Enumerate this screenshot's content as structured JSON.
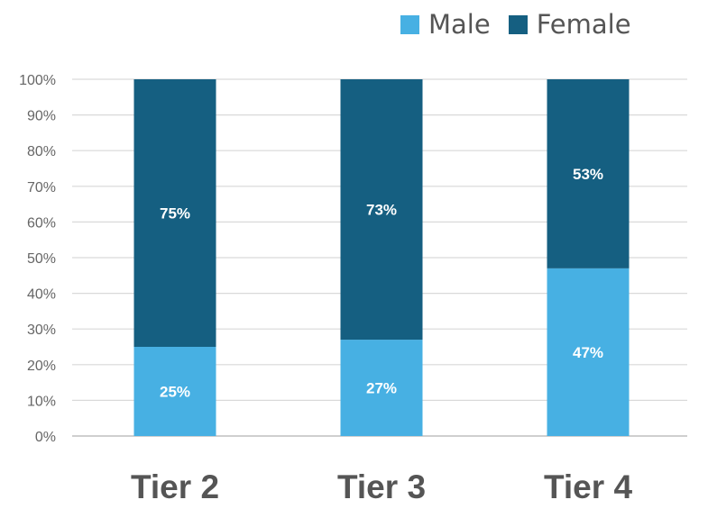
{
  "chart_data": {
    "type": "bar",
    "stacked": true,
    "percent": true,
    "title": "",
    "xlabel": "",
    "ylabel": "",
    "categories": [
      "Tier 2",
      "Tier 3",
      "Tier 4"
    ],
    "series": [
      {
        "name": "Male",
        "color": "#47B0E3",
        "values": [
          25,
          27,
          47
        ],
        "labels": [
          "25%",
          "27%",
          "47%"
        ]
      },
      {
        "name": "Female",
        "color": "#155F81",
        "values": [
          75,
          73,
          53
        ],
        "labels": [
          "75%",
          "73%",
          "53%"
        ]
      }
    ],
    "ylim": [
      0,
      100
    ],
    "yticks": [
      "0%",
      "10%",
      "20%",
      "30%",
      "40%",
      "50%",
      "60%",
      "70%",
      "80%",
      "90%",
      "100%"
    ],
    "grid": true,
    "legend_position": "top-right"
  }
}
